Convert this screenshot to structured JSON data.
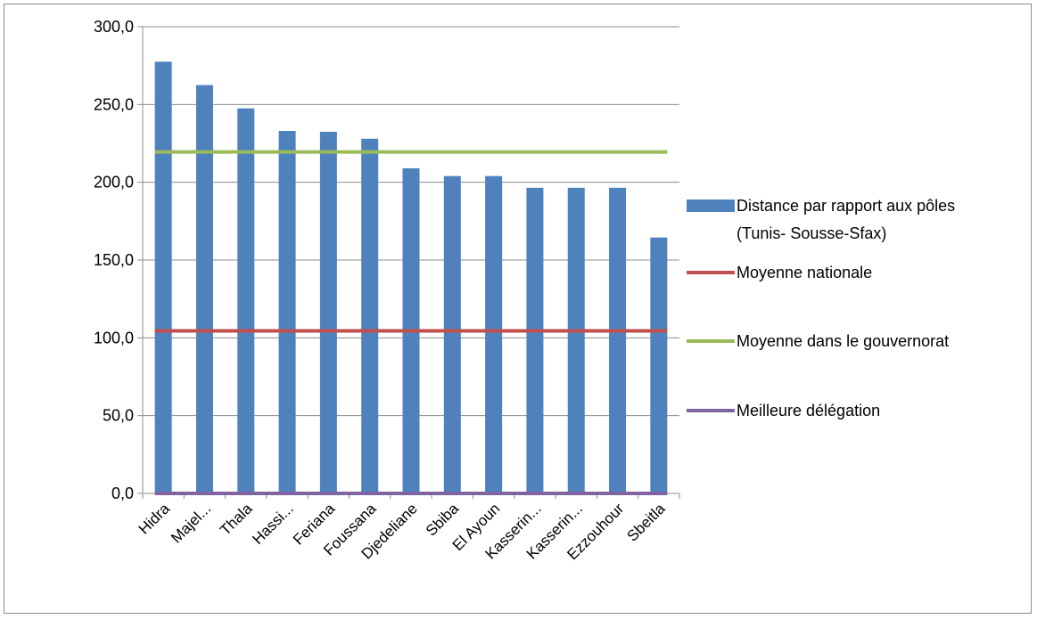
{
  "chart_data": {
    "type": "bar",
    "categories": [
      "Hidra",
      "Majel...",
      "Thala",
      "Hassi...",
      "Feriana",
      "Foussana",
      "Djedeliane",
      "Sbiba",
      "El Ayoun",
      "Kasserin...",
      "Kasserin...",
      "Ezzouhour",
      "Sbeitla"
    ],
    "series": [
      {
        "name": "Distance par rapport aux pôles (Tunis- Sousse-Sfax)",
        "kind": "bar",
        "color": "#4f81bd",
        "values": [
          277.5,
          262.5,
          247.5,
          233.0,
          232.5,
          228.0,
          209.0,
          204.0,
          204.0,
          196.5,
          196.5,
          196.5,
          164.5
        ]
      },
      {
        "name": "Moyenne nationale",
        "kind": "line",
        "color": "#c0504d",
        "value": 104.5
      },
      {
        "name": "Moyenne dans le gouvernorat",
        "kind": "line",
        "color": "#9bbb59",
        "value": 219.5
      },
      {
        "name": "Meilleure délégation",
        "kind": "line",
        "color": "#8064a2",
        "value": 0.0
      }
    ],
    "yticks": [
      "0,0",
      "50,0",
      "100,0",
      "150,0",
      "200,0",
      "250,0",
      "300,0"
    ],
    "ylim": [
      0,
      300
    ],
    "grid": true,
    "legend_position": "right",
    "legend": [
      {
        "lines": [
          "Distance par rapport aux pôles",
          "(Tunis- Sousse-Sfax)"
        ]
      },
      {
        "lines": [
          "Moyenne nationale"
        ]
      },
      {
        "lines": [
          "Moyenne dans le gouvernorat"
        ]
      },
      {
        "lines": [
          "Meilleure délégation"
        ]
      }
    ]
  }
}
